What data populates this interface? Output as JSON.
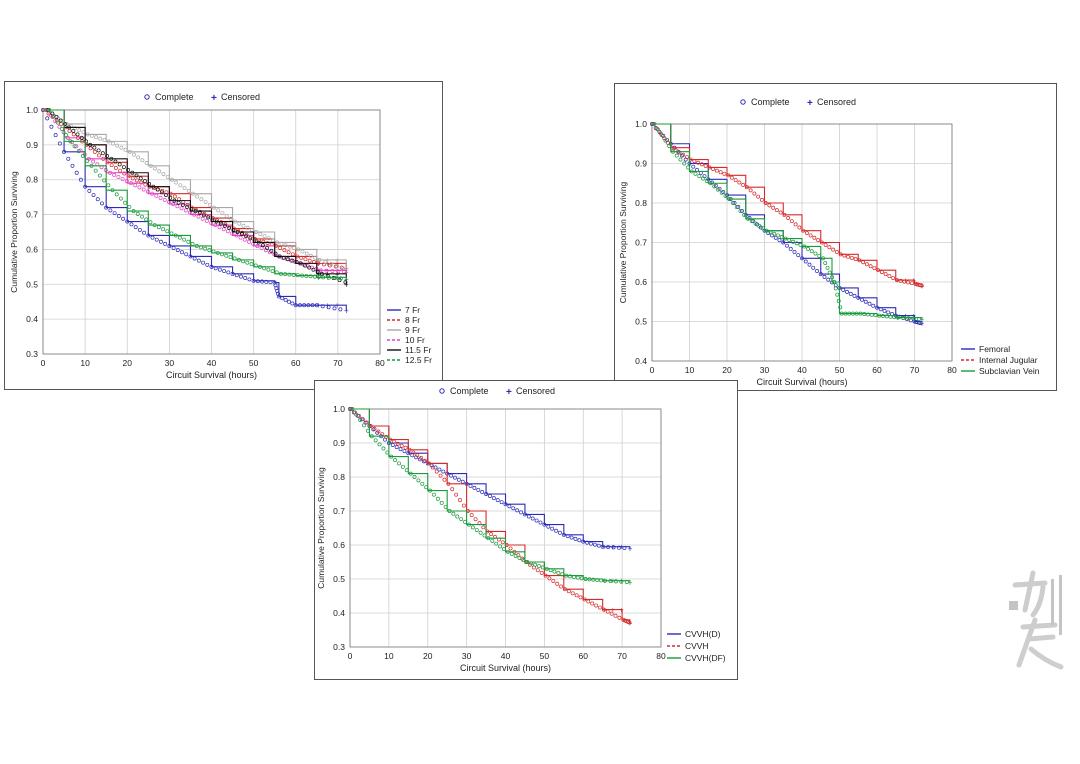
{
  "legend_markers": {
    "complete": "Complete",
    "censored": "Censored"
  },
  "colors": {
    "blue": "#2b2bb8",
    "red": "#d42a2a",
    "green": "#1a9a3a",
    "black": "#111111",
    "pink": "#e040c0",
    "gray": "#a8a8a8",
    "lime": "#66cc33"
  },
  "chart_data": [
    {
      "type": "line",
      "chart": "survival-by-catheter-size",
      "xlabel": "Circuit Survival (hours)",
      "ylabel": "Cumulative Proportion Surviving",
      "xlim": [
        0,
        80
      ],
      "ylim": [
        0.3,
        1.0
      ],
      "xticks": [
        "0",
        "10",
        "20",
        "30",
        "40",
        "50",
        "60",
        "70",
        "80"
      ],
      "yticks": [
        "0.3",
        "0.4",
        "0.5",
        "0.6",
        "0.7",
        "0.8",
        "0.9",
        "1.0"
      ],
      "grid": true,
      "legend_position": "right",
      "series": [
        {
          "name": "7 Fr",
          "color": "#2b2bb8",
          "points": [
            [
              0,
              1.0
            ],
            [
              5,
              0.88
            ],
            [
              10,
              0.78
            ],
            [
              15,
              0.72
            ],
            [
              20,
              0.68
            ],
            [
              25,
              0.64
            ],
            [
              30,
              0.61
            ],
            [
              35,
              0.58
            ],
            [
              40,
              0.55
            ],
            [
              45,
              0.53
            ],
            [
              50,
              0.51
            ],
            [
              55,
              0.505
            ],
            [
              56,
              0.465
            ],
            [
              60,
              0.44
            ],
            [
              65,
              0.44
            ],
            [
              72,
              0.425
            ]
          ]
        },
        {
          "name": "8 Fr",
          "color": "#d42a2a",
          "points": [
            [
              0,
              1.0
            ],
            [
              5,
              0.95
            ],
            [
              10,
              0.9
            ],
            [
              15,
              0.85
            ],
            [
              20,
              0.81
            ],
            [
              25,
              0.78
            ],
            [
              30,
              0.76
            ],
            [
              35,
              0.72
            ],
            [
              40,
              0.69
            ],
            [
              45,
              0.66
            ],
            [
              50,
              0.63
            ],
            [
              55,
              0.61
            ],
            [
              60,
              0.58
            ],
            [
              65,
              0.56
            ],
            [
              72,
              0.545
            ]
          ]
        },
        {
          "name": "9 Fr",
          "color": "#a8a8a8",
          "points": [
            [
              0,
              1.0
            ],
            [
              5,
              0.96
            ],
            [
              10,
              0.93
            ],
            [
              15,
              0.91
            ],
            [
              20,
              0.88
            ],
            [
              25,
              0.84
            ],
            [
              30,
              0.8
            ],
            [
              35,
              0.76
            ],
            [
              40,
              0.72
            ],
            [
              45,
              0.68
            ],
            [
              50,
              0.65
            ],
            [
              55,
              0.62
            ],
            [
              60,
              0.6
            ],
            [
              65,
              0.57
            ],
            [
              72,
              0.54
            ]
          ]
        },
        {
          "name": "10 Fr",
          "color": "#e040c0",
          "points": [
            [
              0,
              1.0
            ],
            [
              5,
              0.92
            ],
            [
              10,
              0.86
            ],
            [
              15,
              0.82
            ],
            [
              20,
              0.79
            ],
            [
              25,
              0.76
            ],
            [
              30,
              0.73
            ],
            [
              35,
              0.7
            ],
            [
              40,
              0.67
            ],
            [
              45,
              0.64
            ],
            [
              50,
              0.61
            ],
            [
              55,
              0.58
            ],
            [
              60,
              0.56
            ],
            [
              65,
              0.54
            ],
            [
              72,
              0.535
            ]
          ]
        },
        {
          "name": "11.5 Fr",
          "color": "#111111",
          "points": [
            [
              0,
              1.0
            ],
            [
              5,
              0.95
            ],
            [
              10,
              0.9
            ],
            [
              15,
              0.86
            ],
            [
              20,
              0.82
            ],
            [
              25,
              0.78
            ],
            [
              30,
              0.74
            ],
            [
              35,
              0.71
            ],
            [
              40,
              0.68
            ],
            [
              45,
              0.65
            ],
            [
              50,
              0.62
            ],
            [
              55,
              0.58
            ],
            [
              60,
              0.56
            ],
            [
              65,
              0.53
            ],
            [
              72,
              0.5
            ]
          ]
        },
        {
          "name": "12.5 Fr",
          "color": "#1a9a3a",
          "points": [
            [
              0,
              1.0
            ],
            [
              5,
              0.91
            ],
            [
              10,
              0.84
            ],
            [
              15,
              0.77
            ],
            [
              20,
              0.71
            ],
            [
              25,
              0.67
            ],
            [
              30,
              0.64
            ],
            [
              35,
              0.61
            ],
            [
              40,
              0.59
            ],
            [
              45,
              0.57
            ],
            [
              50,
              0.55
            ],
            [
              55,
              0.53
            ],
            [
              60,
              0.525
            ],
            [
              65,
              0.52
            ],
            [
              72,
              0.515
            ]
          ]
        }
      ]
    },
    {
      "type": "line",
      "chart": "survival-by-access-site",
      "xlabel": "Circuit Survival (hours)",
      "ylabel": "Cumulative Proportion Surviving",
      "xlim": [
        0,
        80
      ],
      "ylim": [
        0.4,
        1.0
      ],
      "xticks": [
        "0",
        "10",
        "20",
        "30",
        "40",
        "50",
        "60",
        "70",
        "80"
      ],
      "yticks": [
        "0.4",
        "0.5",
        "0.6",
        "0.7",
        "0.8",
        "0.9",
        "1.0"
      ],
      "grid": true,
      "legend_position": "right",
      "series": [
        {
          "name": "Femoral",
          "color": "#2b2bb8",
          "points": [
            [
              0,
              1.0
            ],
            [
              5,
              0.95
            ],
            [
              10,
              0.9
            ],
            [
              15,
              0.86
            ],
            [
              20,
              0.82
            ],
            [
              25,
              0.77
            ],
            [
              30,
              0.73
            ],
            [
              35,
              0.7
            ],
            [
              40,
              0.66
            ],
            [
              45,
              0.62
            ],
            [
              50,
              0.585
            ],
            [
              55,
              0.56
            ],
            [
              60,
              0.535
            ],
            [
              65,
              0.515
            ],
            [
              70,
              0.5
            ],
            [
              72,
              0.495
            ]
          ]
        },
        {
          "name": "Internal Jugular",
          "color": "#d42a2a",
          "points": [
            [
              0,
              1.0
            ],
            [
              5,
              0.94
            ],
            [
              10,
              0.91
            ],
            [
              15,
              0.89
            ],
            [
              20,
              0.87
            ],
            [
              25,
              0.84
            ],
            [
              30,
              0.8
            ],
            [
              35,
              0.77
            ],
            [
              40,
              0.73
            ],
            [
              45,
              0.7
            ],
            [
              50,
              0.67
            ],
            [
              55,
              0.655
            ],
            [
              60,
              0.63
            ],
            [
              65,
              0.605
            ],
            [
              70,
              0.595
            ],
            [
              72,
              0.59
            ]
          ]
        },
        {
          "name": "Subclavian Vein",
          "color": "#1a9a3a",
          "points": [
            [
              0,
              1.0
            ],
            [
              5,
              0.93
            ],
            [
              10,
              0.88
            ],
            [
              15,
              0.85
            ],
            [
              20,
              0.81
            ],
            [
              25,
              0.76
            ],
            [
              30,
              0.73
            ],
            [
              35,
              0.71
            ],
            [
              40,
              0.69
            ],
            [
              45,
              0.66
            ],
            [
              48,
              0.6
            ],
            [
              50,
              0.52
            ],
            [
              55,
              0.52
            ],
            [
              60,
              0.515
            ],
            [
              65,
              0.51
            ],
            [
              72,
              0.505
            ]
          ]
        }
      ]
    },
    {
      "type": "line",
      "chart": "survival-by-modality",
      "xlabel": "Circuit Survival (hours)",
      "ylabel": "Cumulative Proportion Surviving",
      "xlim": [
        0,
        80
      ],
      "ylim": [
        0.3,
        1.0
      ],
      "xticks": [
        "0",
        "10",
        "20",
        "30",
        "40",
        "50",
        "60",
        "70",
        "80"
      ],
      "yticks": [
        "0.3",
        "0.4",
        "0.5",
        "0.6",
        "0.7",
        "0.8",
        "0.9",
        "1.0"
      ],
      "grid": true,
      "legend_position": "right",
      "series": [
        {
          "name": "CVVH(D)",
          "color": "#2b2bb8",
          "points": [
            [
              0,
              1.0
            ],
            [
              5,
              0.95
            ],
            [
              10,
              0.9
            ],
            [
              15,
              0.87
            ],
            [
              20,
              0.84
            ],
            [
              25,
              0.81
            ],
            [
              30,
              0.78
            ],
            [
              35,
              0.75
            ],
            [
              40,
              0.72
            ],
            [
              45,
              0.69
            ],
            [
              50,
              0.66
            ],
            [
              55,
              0.63
            ],
            [
              60,
              0.61
            ],
            [
              65,
              0.595
            ],
            [
              72,
              0.59
            ]
          ]
        },
        {
          "name": "CVVH",
          "color": "#d42a2a",
          "points": [
            [
              0,
              1.0
            ],
            [
              5,
              0.95
            ],
            [
              10,
              0.91
            ],
            [
              15,
              0.88
            ],
            [
              20,
              0.84
            ],
            [
              25,
              0.78
            ],
            [
              30,
              0.7
            ],
            [
              35,
              0.64
            ],
            [
              40,
              0.6
            ],
            [
              45,
              0.55
            ],
            [
              50,
              0.51
            ],
            [
              55,
              0.47
            ],
            [
              60,
              0.44
            ],
            [
              65,
              0.41
            ],
            [
              70,
              0.38
            ],
            [
              72,
              0.37
            ]
          ]
        },
        {
          "name": "CVVH(DF)",
          "color": "#1a9a3a",
          "points": [
            [
              0,
              1.0
            ],
            [
              5,
              0.92
            ],
            [
              10,
              0.86
            ],
            [
              15,
              0.81
            ],
            [
              20,
              0.76
            ],
            [
              25,
              0.7
            ],
            [
              30,
              0.66
            ],
            [
              35,
              0.62
            ],
            [
              40,
              0.58
            ],
            [
              45,
              0.55
            ],
            [
              50,
              0.53
            ],
            [
              55,
              0.51
            ],
            [
              60,
              0.5
            ],
            [
              65,
              0.495
            ],
            [
              72,
              0.49
            ]
          ]
        }
      ]
    }
  ]
}
